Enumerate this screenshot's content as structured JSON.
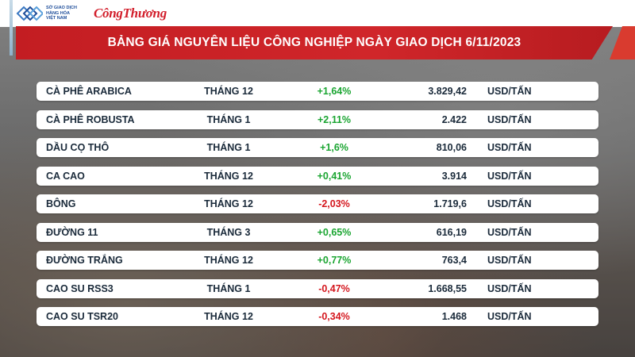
{
  "header": {
    "logo_lines": [
      "SỞ GIAO DỊCH",
      "HÀNG HÓA",
      "VIỆT NAM"
    ],
    "brand": "CôngThương"
  },
  "banner": {
    "title": "BẢNG GIÁ NGUYÊN LIỆU CÔNG NGHIỆP NGÀY GIAO DỊCH 6/11/2023"
  },
  "colors": {
    "banner": "#c31d22",
    "positive": "#1aa531",
    "negative": "#d4161d",
    "text": "#1a2a3a"
  },
  "table": {
    "rows": [
      {
        "name": "CÀ PHÊ ARABICA",
        "month": "THÁNG 12",
        "change": "+1,64%",
        "price": "3.829,42",
        "unit": "USD/TẤN",
        "direction": "up"
      },
      {
        "name": "CÀ PHÊ ROBUSTA",
        "month": "THÁNG 1",
        "change": "+2,11%",
        "price": "2.422",
        "unit": "USD/TẤN",
        "direction": "up"
      },
      {
        "name": "DẦU CỌ THÔ",
        "month": "THÁNG 1",
        "change": "+1,6%",
        "price": "810,06",
        "unit": "USD/TẤN",
        "direction": "up"
      },
      {
        "name": "CA CAO",
        "month": "THÁNG 12",
        "change": "+0,41%",
        "price": "3.914",
        "unit": "USD/TẤN",
        "direction": "up"
      },
      {
        "name": "BÔNG",
        "month": "THÁNG 12",
        "change": "-2,03%",
        "price": "1.719,6",
        "unit": "USD/TẤN",
        "direction": "down"
      },
      {
        "name": "ĐƯỜNG 11",
        "month": "THÁNG 3",
        "change": "+0,65%",
        "price": "616,19",
        "unit": "USD/TẤN",
        "direction": "up"
      },
      {
        "name": "ĐƯỜNG TRẮNG",
        "month": "THÁNG 12",
        "change": "+0,77%",
        "price": "763,4",
        "unit": "USD/TẤN",
        "direction": "up"
      },
      {
        "name": "CAO SU RSS3",
        "month": "THÁNG 1",
        "change": "-0,47%",
        "price": "1.668,55",
        "unit": "USD/TẤN",
        "direction": "down"
      },
      {
        "name": "CAO SU TSR20",
        "month": "THÁNG 12",
        "change": "-0,34%",
        "price": "1.468",
        "unit": "USD/TẤN",
        "direction": "down"
      }
    ]
  }
}
